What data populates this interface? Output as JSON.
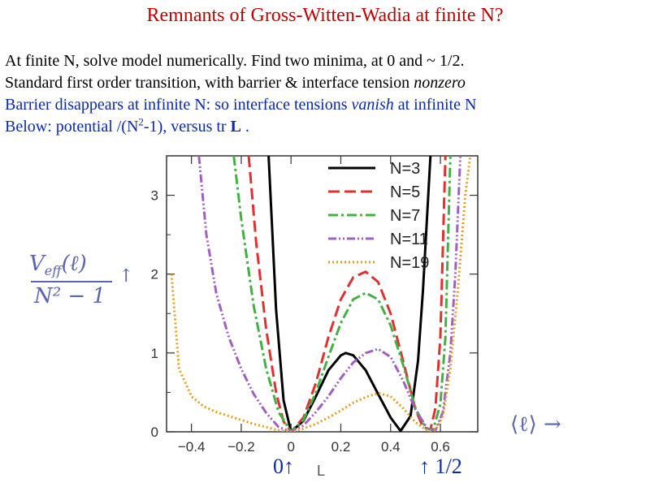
{
  "slide": {
    "title": "Remnants of Gross-Witten-Wadia at finite N?",
    "lines": [
      "At finite N, solve model numerically.  Find two minima, at 0 and ~ 1/2.",
      "Standard first order transition, with barrier & interface tension ",
      "nonzero",
      "Barrier disappears at infinite N: so interface tensions ",
      "vanish",
      " at infinite N",
      "Below: potential /(N",
      "2",
      "-1), versus tr ",
      "L",
      " ."
    ],
    "marker_zero": "0↑",
    "marker_L": "L",
    "marker_half": "↑ 1/2"
  },
  "colors": {
    "title": "#c00000",
    "blue_text": "#0a2aa8",
    "math": "#5a64b0"
  },
  "chart_data": {
    "type": "line",
    "ylabel_numerator": "V",
    "ylabel_sub": "eff",
    "ylabel_arg": "(ℓ)",
    "ylabel_denominator": "N² − 1",
    "ylabel_arrow": "↑",
    "xlabel": "⟨ℓ⟩ →",
    "xlim": [
      -0.5,
      0.75
    ],
    "ylim": [
      0,
      3.5
    ],
    "xticks": [
      -0.4,
      -0.2,
      0,
      0.2,
      0.4,
      0.6
    ],
    "xtick_labels": [
      "−0.4",
      "−0.2",
      "0",
      "0.2",
      "0.4",
      "0.6"
    ],
    "yticks": [
      0,
      1,
      2,
      3
    ],
    "ytick_labels": [
      "0",
      "1",
      "2",
      "3"
    ],
    "legend_position": "top-right",
    "series": [
      {
        "name": "N=3",
        "color": "#000000",
        "dash": "solid",
        "x": [
          -0.09,
          -0.06,
          -0.03,
          0,
          0.05,
          0.1,
          0.15,
          0.2,
          0.22,
          0.25,
          0.3,
          0.35,
          0.4,
          0.44,
          0.48,
          0.51,
          0.53,
          0.56
        ],
        "y": [
          3.5,
          1.55,
          0.4,
          0,
          0.14,
          0.45,
          0.78,
          0.97,
          1.0,
          0.97,
          0.78,
          0.48,
          0.18,
          0.01,
          0.2,
          0.9,
          1.8,
          3.5
        ]
      },
      {
        "name": "N=5",
        "color": "#e03030",
        "dash": "dashed",
        "x": [
          -0.17,
          -0.14,
          -0.1,
          -0.06,
          -0.03,
          0,
          0.05,
          0.1,
          0.15,
          0.2,
          0.25,
          0.3,
          0.35,
          0.4,
          0.45,
          0.5,
          0.53,
          0.56,
          0.58,
          0.6,
          0.62
        ],
        "y": [
          3.5,
          2.4,
          1.3,
          0.5,
          0.13,
          0,
          0.18,
          0.62,
          1.2,
          1.68,
          1.96,
          2.03,
          1.9,
          1.5,
          0.9,
          0.28,
          0.06,
          0.03,
          0.3,
          1.2,
          3.5
        ]
      },
      {
        "name": "N=7",
        "color": "#44b044",
        "dash": "dashdot",
        "x": [
          -0.23,
          -0.2,
          -0.15,
          -0.1,
          -0.05,
          0,
          0.05,
          0.1,
          0.15,
          0.2,
          0.25,
          0.3,
          0.35,
          0.4,
          0.45,
          0.5,
          0.54,
          0.57,
          0.6,
          0.62,
          0.64
        ],
        "y": [
          3.5,
          2.7,
          1.6,
          0.8,
          0.25,
          0,
          0.15,
          0.5,
          0.95,
          1.38,
          1.68,
          1.76,
          1.68,
          1.35,
          0.85,
          0.3,
          0.05,
          0.02,
          0.35,
          1.2,
          3.5
        ]
      },
      {
        "name": "N=11",
        "color": "#a060c0",
        "dash": "dashdotdot",
        "x": [
          -0.37,
          -0.34,
          -0.3,
          -0.25,
          -0.2,
          -0.15,
          -0.1,
          -0.05,
          0,
          0.05,
          0.1,
          0.15,
          0.2,
          0.25,
          0.3,
          0.35,
          0.4,
          0.45,
          0.5,
          0.55,
          0.58,
          0.61,
          0.64,
          0.66,
          0.68
        ],
        "y": [
          3.5,
          2.5,
          1.75,
          1.2,
          0.8,
          0.48,
          0.24,
          0.06,
          0,
          0.08,
          0.25,
          0.45,
          0.68,
          0.88,
          1.0,
          1.05,
          0.95,
          0.65,
          0.28,
          0.03,
          0.02,
          0.25,
          1.0,
          2.0,
          3.5
        ]
      },
      {
        "name": "N=19",
        "color": "#e0a020",
        "dash": "dotted",
        "x": [
          -0.48,
          -0.45,
          -0.4,
          -0.35,
          -0.3,
          -0.25,
          -0.2,
          -0.15,
          -0.1,
          -0.05,
          0,
          0.05,
          0.1,
          0.15,
          0.2,
          0.25,
          0.3,
          0.35,
          0.4,
          0.45,
          0.5,
          0.55,
          0.58,
          0.61,
          0.64,
          0.67,
          0.7,
          0.72
        ],
        "y": [
          2.0,
          0.8,
          0.45,
          0.32,
          0.25,
          0.2,
          0.15,
          0.1,
          0.06,
          0.02,
          0,
          0.04,
          0.1,
          0.18,
          0.27,
          0.37,
          0.44,
          0.49,
          0.45,
          0.3,
          0.12,
          0.01,
          0.02,
          0.2,
          0.8,
          1.8,
          3.0,
          3.5
        ]
      }
    ]
  }
}
